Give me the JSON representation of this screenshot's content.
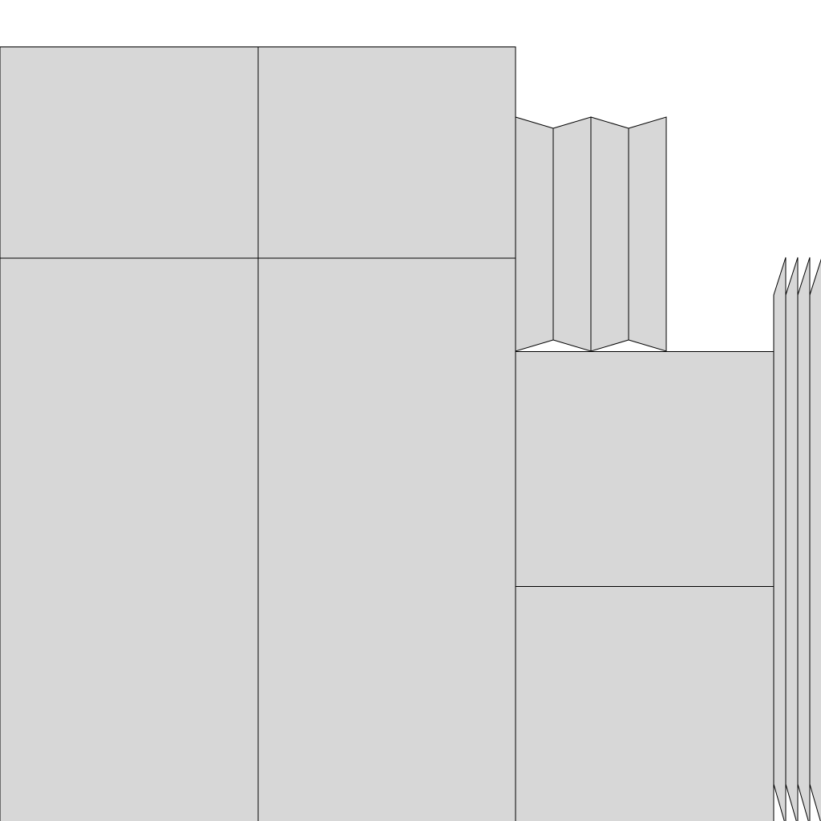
{
  "diagram": {
    "fill_color": "#d7d7d7",
    "stroke_color": "#000000",
    "panels": [
      {
        "name": "panel-top-left"
      },
      {
        "name": "panel-top-middle"
      },
      {
        "name": "panel-bottom-left"
      },
      {
        "name": "panel-bottom-middle"
      },
      {
        "name": "panel-right-upper"
      },
      {
        "name": "panel-right-lower"
      }
    ],
    "top_fold_strips": 4,
    "right_fold_strips": 4
  }
}
